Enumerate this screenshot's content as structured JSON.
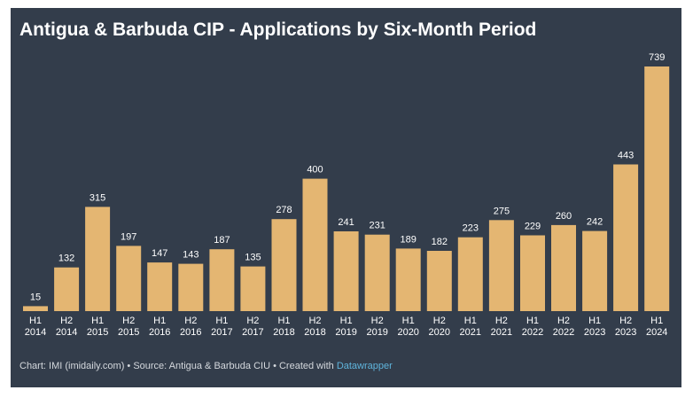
{
  "title": "Antigua & Barbuda CIP - Applications by Six-Month Period",
  "footer": {
    "prefix": "Chart: IMI (imidaily.com) • Source: Antigua & Barbuda CIU • Created with ",
    "link": "Datawrapper"
  },
  "colors": {
    "background": "#333d4b",
    "bar": "#e4b672",
    "text": "#ffffff",
    "link": "#5fb4dc"
  },
  "chart_data": {
    "type": "bar",
    "categories": [
      [
        "H1",
        "2014"
      ],
      [
        "H2",
        "2014"
      ],
      [
        "H1",
        "2015"
      ],
      [
        "H2",
        "2015"
      ],
      [
        "H1",
        "2016"
      ],
      [
        "H2",
        "2016"
      ],
      [
        "H1",
        "2017"
      ],
      [
        "H2",
        "2017"
      ],
      [
        "H1",
        "2018"
      ],
      [
        "H2",
        "2018"
      ],
      [
        "H1",
        "2019"
      ],
      [
        "H2",
        "2019"
      ],
      [
        "H1",
        "2020"
      ],
      [
        "H2",
        "2020"
      ],
      [
        "H1",
        "2021"
      ],
      [
        "H2",
        "2021"
      ],
      [
        "H1",
        "2022"
      ],
      [
        "H2",
        "2022"
      ],
      [
        "H1",
        "2023"
      ],
      [
        "H2",
        "2023"
      ],
      [
        "H1",
        "2024"
      ]
    ],
    "values": [
      15,
      132,
      315,
      197,
      147,
      143,
      187,
      135,
      278,
      400,
      241,
      231,
      189,
      182,
      223,
      275,
      229,
      260,
      242,
      443,
      739
    ],
    "title": "Antigua & Barbuda CIP - Applications by Six-Month Period",
    "xlabel": "",
    "ylabel": "",
    "ylim": [
      0,
      739
    ],
    "grid": false,
    "data_labels": true
  }
}
